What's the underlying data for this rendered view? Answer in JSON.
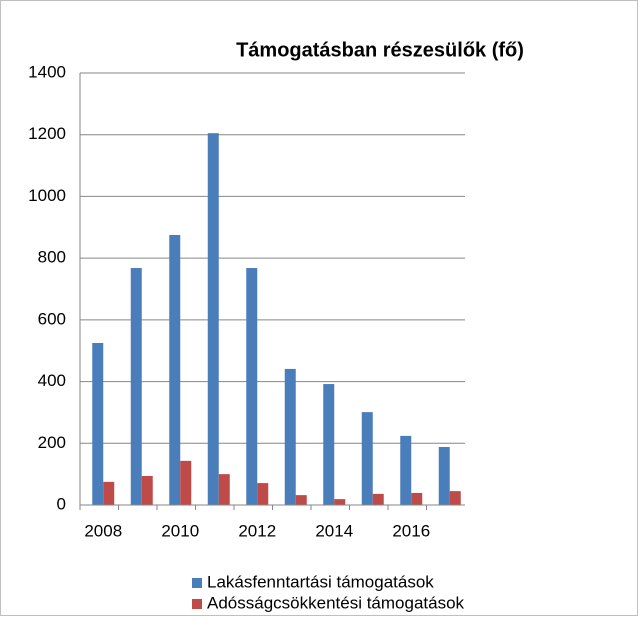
{
  "chart_data": {
    "type": "bar",
    "title": "Támogatásban  részesülők (fő)",
    "categories": [
      "2008",
      null,
      "2010",
      null,
      "2012",
      null,
      "2014",
      null,
      "2016",
      null
    ],
    "series": [
      {
        "name": "Lakásfenntartási támogatások",
        "color": "#4a7ebb",
        "values": [
          525,
          768,
          875,
          1205,
          768,
          441,
          392,
          301,
          224,
          188
        ]
      },
      {
        "name": "Adósságcsökkentési támogatások",
        "color": "#be4b48",
        "values": [
          75,
          94,
          143,
          100,
          71,
          32,
          19,
          36,
          39,
          45
        ]
      }
    ],
    "ylim": [
      0,
      1400
    ],
    "yticks": [
      0,
      200,
      400,
      600,
      800,
      1000,
      1200,
      1400
    ],
    "grid": true,
    "legend": "bottom"
  }
}
